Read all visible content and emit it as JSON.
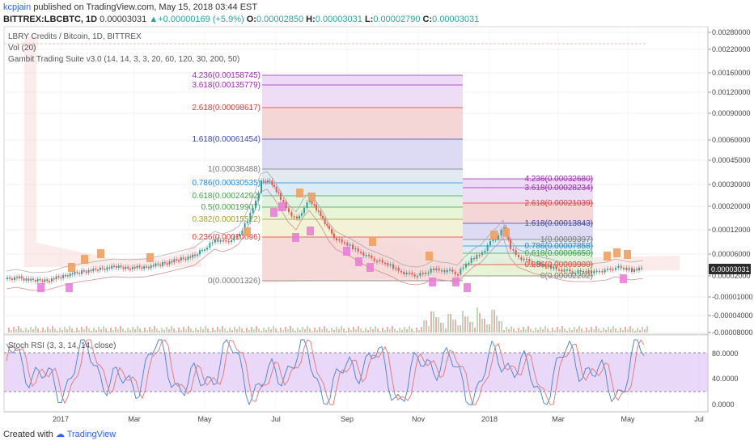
{
  "header": {
    "user": "kcpjain",
    "published": "published on TradingView.com, May 15, 2018 03:44 EST",
    "symbol": "BITTREX:LBCBTC, 1D",
    "last": "0.00003031",
    "change_arrow": "▲",
    "change": "+0.00000169 (+5.9%)",
    "o_label": "O:",
    "o": "0.00002850",
    "h_label": "H:",
    "h": "0.00003031",
    "l_label": "L:",
    "l": "0.00002790",
    "c_label": "C:",
    "c": "0.00003031"
  },
  "legend": {
    "title": "LBRY Credits / Bitcoin, 1D, BITTREX",
    "vol": "Vol (20)",
    "gambit": "Gambit Trading Suite v3.0 (14, 14, 3, 3, 20, 60, 120, 30, 200, 50)"
  },
  "footer": {
    "created": "Created with",
    "brand": "TradingView"
  },
  "colors": {
    "up": "#26a69a",
    "down": "#ef5350",
    "rsi_band": "#e1c8f7",
    "accent": "#2962ff"
  },
  "chart_data": [
    {
      "type": "candlestick",
      "title": "LBRY Credits / Bitcoin, 1D, BITTREX",
      "current_price": "0.00003031",
      "x_ticks": [
        "2017",
        "Mar",
        "May",
        "Jul",
        "Sep",
        "Nov",
        "2018",
        "Mar",
        "May",
        "Jul"
      ],
      "y_ticks": [
        "0.00280000",
        "0.00220000",
        "0.00160000",
        "0.00120000",
        "0.00090000",
        "0.00060000",
        "0.00045000",
        "0.00030000",
        "0.00020000",
        "0.00012000",
        "0.00006000",
        "0.00002000",
        "-0.00001000",
        "-0.00004000",
        "-0.00008000"
      ],
      "fib_retracement_1": [
        {
          "level": "4.236(0.00158745)",
          "color": "#9c27b0"
        },
        {
          "level": "3.618(0.00135779)",
          "color": "#9c27b0"
        },
        {
          "level": "2.618(0.00098617)",
          "color": "#e53935"
        },
        {
          "level": "1.618(0.00061454)",
          "color": "#3949ab"
        },
        {
          "level": "1(0.00038488)",
          "color": "#777777"
        },
        {
          "level": "0.786(0.00030535)",
          "color": "#1e88e5"
        },
        {
          "level": "0.618(0.00024292)",
          "color": "#43a047"
        },
        {
          "level": "0.5(0.00019907)",
          "color": "#43a047"
        },
        {
          "level": "0.382(0.00015522)",
          "color": "#9e9d24"
        },
        {
          "level": "0.236(0.00010096)",
          "color": "#e53935"
        },
        {
          "level": "0(0.00001326)",
          "color": "#777777"
        }
      ],
      "fib_retracement_2": [
        {
          "level": "4.236(0.00032680)",
          "color": "#9c27b0"
        },
        {
          "level": "3.618(0.00028234)",
          "color": "#9c27b0"
        },
        {
          "level": "2.618(0.00021039)",
          "color": "#e53935"
        },
        {
          "level": "1.618(0.00013843)",
          "color": "#3949ab"
        },
        {
          "level": "1(0.00009397)",
          "color": "#777777"
        },
        {
          "level": "0.786(0.00007858)",
          "color": "#1e88e5"
        },
        {
          "level": "0.618(0.00006650)",
          "color": "#43a047"
        },
        {
          "level": "0.236(0.00003900)",
          "color": "#e53935"
        },
        {
          "level": "0(0.00002202)",
          "color": "#777777"
        }
      ]
    },
    {
      "type": "line",
      "title": "Stoch RSI (3, 3, 14, 14, close)",
      "y_ticks": [
        "80.0000",
        "40.0000",
        "0.0000"
      ],
      "band": [
        20,
        80
      ]
    }
  ]
}
